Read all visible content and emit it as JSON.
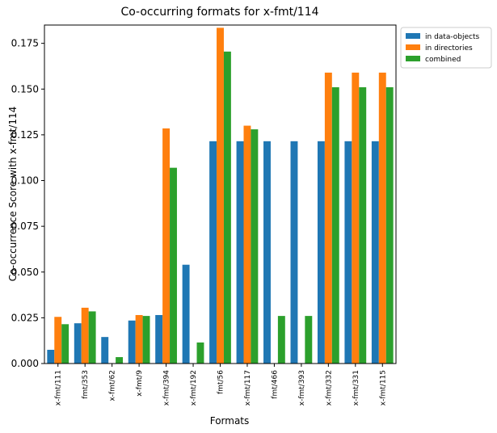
{
  "chart_data": {
    "type": "bar",
    "title": "Co-occurring formats for x-fmt/114",
    "xlabel": "Formats",
    "ylabel": "Co-occurrence Score with x-fmt/114",
    "ylim": [
      0,
      0.185
    ],
    "yticks": [
      "0.000",
      "0.025",
      "0.050",
      "0.075",
      "0.100",
      "0.125",
      "0.150",
      "0.175"
    ],
    "grid": false,
    "legend_position": "outside-top-right",
    "categories": [
      "x-fmt/111",
      "fmt/353",
      "x-fmt/62",
      "x-fmt/9",
      "x-fmt/394",
      "x-fmt/192",
      "fmt/56",
      "x-fmt/117",
      "fmt/466",
      "x-fmt/393",
      "x-fmt/332",
      "x-fmt/331",
      "x-fmt/115"
    ],
    "series": [
      {
        "name": "in data-objects",
        "color": "#1f77b4",
        "values": [
          0.0075,
          0.022,
          0.0145,
          0.0235,
          0.0265,
          0.054,
          0.1215,
          0.1215,
          0.1215,
          0.1215,
          0.1215,
          0.1215,
          0.1215
        ]
      },
      {
        "name": "in directories",
        "color": "#ff7f0e",
        "values": [
          0.0255,
          0.0305,
          0,
          0.0265,
          0.1285,
          0,
          0.1835,
          0.13,
          0,
          0,
          0.159,
          0.159,
          0.159
        ]
      },
      {
        "name": "combined",
        "color": "#2ca02c",
        "values": [
          0.0215,
          0.0285,
          0.0035,
          0.026,
          0.107,
          0.0115,
          0.1705,
          0.128,
          0.026,
          0.026,
          0.151,
          0.151,
          0.151
        ]
      }
    ]
  }
}
